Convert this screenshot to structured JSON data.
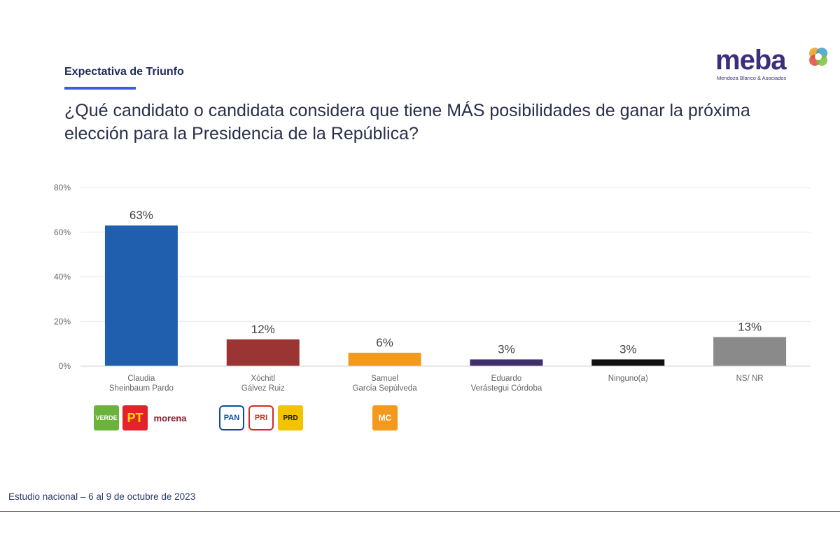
{
  "header": {
    "section_title": "Expectativa de Triunfo",
    "question": "¿Qué candidato o candidata considera que tiene MÁS posibilidades de ganar la próxima elección para la Presidencia de la República?"
  },
  "logo": {
    "word": "meba",
    "subtitle": "Mendoza Blanco & Asociados",
    "colors": [
      "#e8a020",
      "#39a0d0",
      "#d94b3b",
      "#7fbf3f"
    ]
  },
  "chart_data": {
    "type": "bar",
    "categories": [
      [
        "Claudia",
        "Sheinbaum Pardo"
      ],
      [
        "Xóchitl",
        "Gálvez Ruiz"
      ],
      [
        "Samuel",
        "García Sepúlveda"
      ],
      [
        "Eduardo",
        "Verástegui Córdoba"
      ],
      [
        "Ninguno(a)"
      ],
      [
        "NS/ NR"
      ]
    ],
    "values": [
      63,
      12,
      6,
      3,
      3,
      13
    ],
    "data_labels": [
      "63%",
      "12%",
      "6%",
      "3%",
      "3%",
      "13%"
    ],
    "colors": [
      "#1f5fae",
      "#9a3533",
      "#f39a1e",
      "#3f2f6a",
      "#111111",
      "#8a8a8a"
    ],
    "yticks": [
      "0%",
      "20%",
      "40%",
      "60%",
      "80%"
    ],
    "ylim": [
      0,
      80
    ],
    "grid": true,
    "xlabel": "",
    "ylabel": ""
  },
  "party_logos": [
    {
      "text": "VERDE",
      "color": "#6cb33e",
      "text_color": "#ffffff"
    },
    {
      "text": "PT",
      "color": "#e3222b",
      "text_color": "#ffde00"
    },
    {
      "text": "morena",
      "color": "#ffffff",
      "text_color": "#8a1c2b"
    },
    {
      "text": "PAN",
      "color": "#ffffff",
      "text_color": "#0b4ea2"
    },
    {
      "text": "PRI",
      "color": "#ffffff",
      "text_color": "#d52b1e"
    },
    {
      "text": "PRD",
      "color": "#f2c400",
      "text_color": "#1a1a1a"
    },
    {
      "text": "MC",
      "color": "#f39a1e",
      "text_color": "#ffffff"
    }
  ],
  "footer": {
    "text": "Estudio nacional – 6 al 9 de octubre de 2023"
  }
}
